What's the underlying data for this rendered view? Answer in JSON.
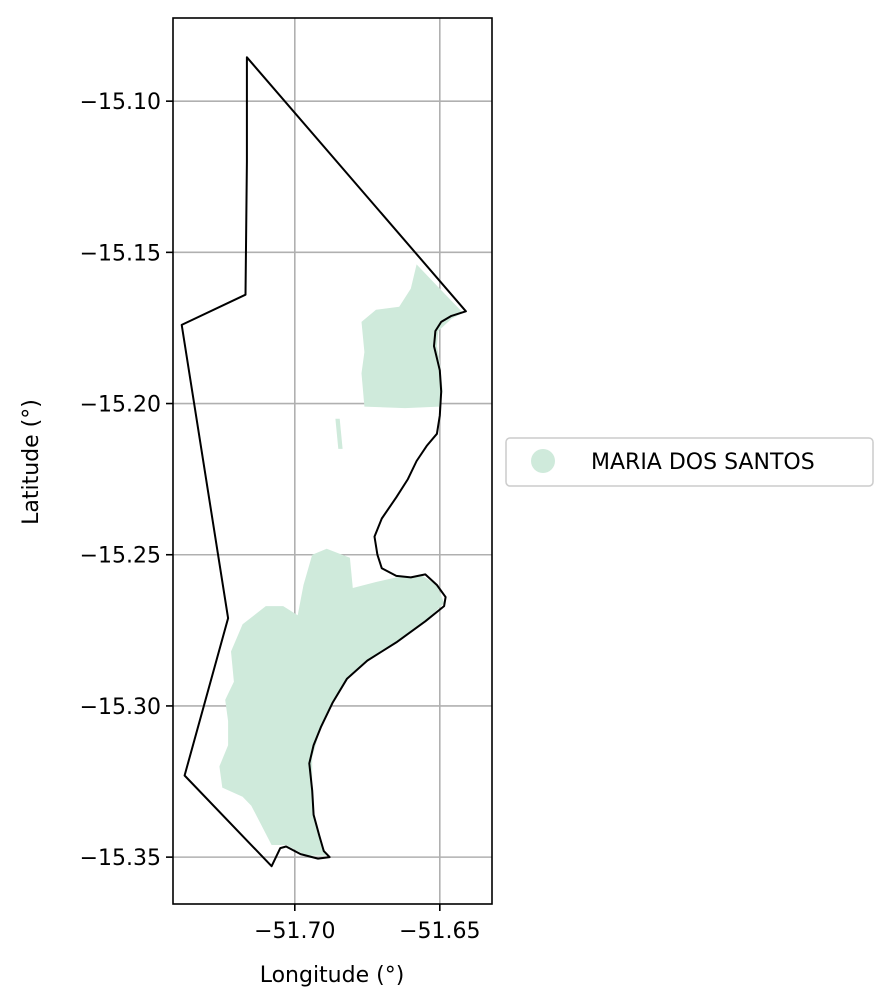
{
  "map": {
    "xlabel": "Longitude (°)",
    "ylabel": "Latitude (°)",
    "xlim": [
      -51.742,
      -51.632
    ],
    "ylim": [
      -15.3655,
      -15.0725
    ],
    "x_ticks": [
      -51.7,
      -51.65
    ],
    "x_tick_labels": [
      "−51.70",
      "−51.65"
    ],
    "y_ticks": [
      -15.1,
      -15.15,
      -15.2,
      -15.25,
      -15.3,
      -15.35
    ],
    "y_tick_labels": [
      "−15.10",
      "−15.15",
      "−15.20",
      "−15.25",
      "−15.30",
      "−15.35"
    ],
    "grid": true,
    "colors": {
      "fill": "#cfeadb",
      "boundary": "#000000",
      "grid": "#b0b0b0"
    },
    "legend": {
      "placement": "right",
      "entries": [
        {
          "label": "MARIA DOS SANTOS",
          "color": "#cfeadb"
        }
      ]
    },
    "boundary": [
      [
        -51.7165,
        -15.0855
      ],
      [
        -51.641,
        -15.1695
      ],
      [
        -51.646,
        -15.171
      ],
      [
        -51.6495,
        -15.173
      ],
      [
        -51.6515,
        -15.176
      ],
      [
        -51.652,
        -15.181
      ],
      [
        -51.651,
        -15.185
      ],
      [
        -51.65,
        -15.189
      ],
      [
        -51.6495,
        -15.196
      ],
      [
        -51.65,
        -15.204
      ],
      [
        -51.651,
        -15.21
      ],
      [
        -51.6545,
        -15.214
      ],
      [
        -51.658,
        -15.219
      ],
      [
        -51.661,
        -15.225
      ],
      [
        -51.665,
        -15.231
      ],
      [
        -51.67,
        -15.238
      ],
      [
        -51.6725,
        -15.244
      ],
      [
        -51.6715,
        -15.25
      ],
      [
        -51.67,
        -15.2545
      ],
      [
        -51.665,
        -15.257
      ],
      [
        -51.66,
        -15.2575
      ],
      [
        -51.655,
        -15.2565
      ],
      [
        -51.651,
        -15.26
      ],
      [
        -51.648,
        -15.264
      ],
      [
        -51.6485,
        -15.267
      ],
      [
        -51.655,
        -15.272
      ],
      [
        -51.665,
        -15.279
      ],
      [
        -51.675,
        -15.285
      ],
      [
        -51.682,
        -15.291
      ],
      [
        -51.687,
        -15.299
      ],
      [
        -51.691,
        -15.307
      ],
      [
        -51.6935,
        -15.313
      ],
      [
        -51.695,
        -15.319
      ],
      [
        -51.694,
        -15.328
      ],
      [
        -51.6935,
        -15.336
      ],
      [
        -51.6915,
        -15.343
      ],
      [
        -51.69,
        -15.348
      ],
      [
        -51.688,
        -15.35
      ],
      [
        -51.692,
        -15.3505
      ],
      [
        -51.698,
        -15.349
      ],
      [
        -51.703,
        -15.3465
      ],
      [
        -51.705,
        -15.347
      ],
      [
        -51.708,
        -15.353
      ],
      [
        -51.738,
        -15.323
      ],
      [
        -51.723,
        -15.271
      ],
      [
        -51.739,
        -15.174
      ],
      [
        -51.717,
        -15.164
      ],
      [
        -51.7165,
        -15.12
      ],
      [
        -51.7165,
        -15.0855
      ]
    ],
    "fill_regions": [
      [
        [
          -51.658,
          -15.154
        ],
        [
          -51.652,
          -15.16
        ],
        [
          -51.646,
          -15.166
        ],
        [
          -51.642,
          -15.17
        ],
        [
          -51.646,
          -15.172
        ],
        [
          -51.6505,
          -15.176
        ],
        [
          -51.651,
          -15.181
        ],
        [
          -51.65,
          -15.186
        ],
        [
          -51.649,
          -15.196
        ],
        [
          -51.65,
          -15.201
        ],
        [
          -51.662,
          -15.2015
        ],
        [
          -51.676,
          -15.201
        ],
        [
          -51.677,
          -15.19
        ],
        [
          -51.676,
          -15.183
        ],
        [
          -51.677,
          -15.173
        ],
        [
          -51.672,
          -15.169
        ],
        [
          -51.664,
          -15.168
        ],
        [
          -51.66,
          -15.162
        ]
      ],
      [
        [
          -51.686,
          -15.205
        ],
        [
          -51.685,
          -15.215
        ],
        [
          -51.6835,
          -15.215
        ],
        [
          -51.6845,
          -15.205
        ]
      ],
      [
        [
          -51.694,
          -15.25
        ],
        [
          -51.689,
          -15.248
        ],
        [
          -51.681,
          -15.251
        ],
        [
          -51.68,
          -15.261
        ],
        [
          -51.672,
          -15.259
        ],
        [
          -51.665,
          -15.2575
        ],
        [
          -51.656,
          -15.257
        ],
        [
          -51.651,
          -15.26
        ],
        [
          -51.6485,
          -15.266
        ],
        [
          -51.655,
          -15.272
        ],
        [
          -51.665,
          -15.279
        ],
        [
          -51.675,
          -15.285
        ],
        [
          -51.682,
          -15.291
        ],
        [
          -51.687,
          -15.299
        ],
        [
          -51.691,
          -15.307
        ],
        [
          -51.694,
          -15.317
        ],
        [
          -51.694,
          -15.328
        ],
        [
          -51.6935,
          -15.336
        ],
        [
          -51.6915,
          -15.343
        ],
        [
          -51.689,
          -15.3495
        ],
        [
          -51.696,
          -15.3495
        ],
        [
          -51.703,
          -15.346
        ],
        [
          -51.708,
          -15.346
        ],
        [
          -51.715,
          -15.333
        ],
        [
          -51.718,
          -15.33
        ],
        [
          -51.725,
          -15.327
        ],
        [
          -51.726,
          -15.32
        ],
        [
          -51.723,
          -15.313
        ],
        [
          -51.723,
          -15.305
        ],
        [
          -51.724,
          -15.298
        ],
        [
          -51.721,
          -15.292
        ],
        [
          -51.722,
          -15.282
        ],
        [
          -51.718,
          -15.273
        ],
        [
          -51.71,
          -15.267
        ],
        [
          -51.704,
          -15.267
        ],
        [
          -51.699,
          -15.27
        ],
        [
          -51.697,
          -15.26
        ]
      ]
    ]
  }
}
